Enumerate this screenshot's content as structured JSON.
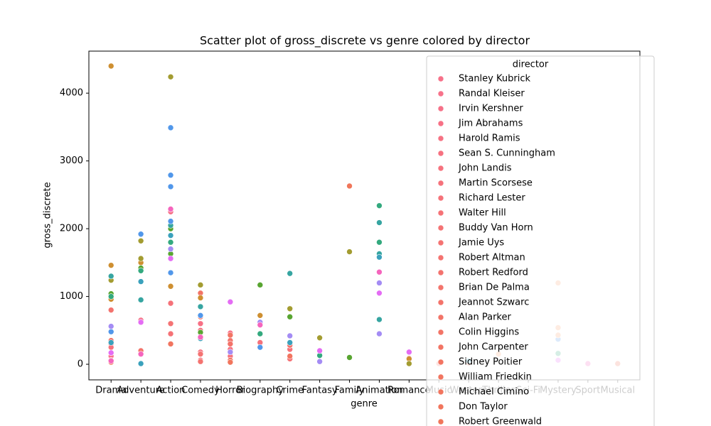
{
  "chart_data": {
    "type": "scatter",
    "title": "Scatter plot of gross_discrete vs genre colored by director",
    "x_label": "genre",
    "y_label": "gross_discrete",
    "legend_title": "director",
    "legend_position": "upper right",
    "categories": [
      "Drama",
      "Adventure",
      "Action",
      "Comedy",
      "Horror",
      "Biography",
      "Crime",
      "Fantasy",
      "Family",
      "Animation",
      "Romance",
      "Music",
      "Western",
      "Thriller",
      "Sci-Fi",
      "Mystery",
      "Sport",
      "Musical"
    ],
    "ylim": [
      -230,
      4620
    ],
    "yticks": [
      0,
      1000,
      2000,
      3000,
      4000
    ],
    "series": [
      {
        "name": "Stanley Kubrick",
        "color": "#f77189",
        "x": [
          "Drama",
          "Horror"
        ],
        "values": [
          120,
          460
        ]
      },
      {
        "name": "Randal Kleiser",
        "color": "#f7728a",
        "x": [
          "Romance",
          "Drama"
        ],
        "values": [
          90,
          300
        ]
      },
      {
        "name": "Irvin Kershner",
        "color": "#f67188",
        "x": [
          "Action",
          "Adventure"
        ],
        "values": [
          2250,
          650
        ]
      },
      {
        "name": "Jim Abrahams",
        "color": "#f77085",
        "x": [
          "Comedy"
        ],
        "values": [
          600
        ]
      },
      {
        "name": "Harold Ramis",
        "color": "#f67283",
        "x": [
          "Comedy",
          "Comedy"
        ],
        "values": [
          500,
          180
        ]
      },
      {
        "name": "Sean S. Cunningham",
        "color": "#f67180",
        "x": [
          "Horror"
        ],
        "values": [
          220
        ]
      },
      {
        "name": "John Landis",
        "color": "#f6727e",
        "x": [
          "Comedy",
          "Horror"
        ],
        "values": [
          380,
          120
        ]
      },
      {
        "name": "Martin Scorsese",
        "color": "#f5727b",
        "x": [
          "Drama",
          "Crime",
          "Biography"
        ],
        "values": [
          250,
          220,
          320
        ]
      },
      {
        "name": "Richard Lester",
        "color": "#f57279",
        "x": [
          "Action",
          "Comedy"
        ],
        "values": [
          900,
          60
        ]
      },
      {
        "name": "Walter Hill",
        "color": "#f57276",
        "x": [
          "Action",
          "Crime"
        ],
        "values": [
          450,
          80
        ]
      },
      {
        "name": "Buddy Van Horn",
        "color": "#f47374",
        "x": [
          "Action"
        ],
        "values": [
          600
        ]
      },
      {
        "name": "Jamie Uys",
        "color": "#f47372",
        "x": [
          "Comedy"
        ],
        "values": [
          150
        ]
      },
      {
        "name": "Robert Altman",
        "color": "#f47370",
        "x": [
          "Comedy",
          "Drama"
        ],
        "values": [
          40,
          60
        ]
      },
      {
        "name": "Robert Redford",
        "color": "#f3736e",
        "x": [
          "Drama"
        ],
        "values": [
          800
        ]
      },
      {
        "name": "Brian De Palma",
        "color": "#f3746c",
        "x": [
          "Crime",
          "Horror"
        ],
        "values": [
          280,
          350
        ]
      },
      {
        "name": "Jeannot Szwarc",
        "color": "#f3736a",
        "x": [
          "Horror",
          "Adventure"
        ],
        "values": [
          300,
          200
        ]
      },
      {
        "name": "Alan Parker",
        "color": "#f27468",
        "x": [
          "Drama",
          "Music"
        ],
        "values": [
          350,
          10
        ]
      },
      {
        "name": "Colin Higgins",
        "color": "#f27466",
        "x": [
          "Comedy"
        ],
        "values": [
          1050
        ]
      },
      {
        "name": "John Carpenter",
        "color": "#f27464",
        "x": [
          "Horror",
          "Horror"
        ],
        "values": [
          430,
          60
        ]
      },
      {
        "name": "Sidney Poitier",
        "color": "#f27462",
        "x": [
          "Comedy"
        ],
        "values": [
          700
        ]
      },
      {
        "name": "William Friedkin",
        "color": "#f17560",
        "x": [
          "Crime",
          "Action"
        ],
        "values": [
          120,
          300
        ]
      },
      {
        "name": "Michael Cimino",
        "color": "#f1755e",
        "x": [
          "Western",
          "Drama"
        ],
        "values": [
          20,
          30
        ]
      },
      {
        "name": "Don Taylor",
        "color": "#f1755c",
        "x": [
          "Horror"
        ],
        "values": [
          30
        ]
      },
      {
        "name": "Robert Greenwald",
        "color": "#f0765a",
        "x": [
          "Family",
          "Musical"
        ],
        "values": [
          2630,
          10
        ]
      },
      {
        "color": "#ce8f31",
        "x": [
          "Drama",
          "Drama",
          "Adventure",
          "Action",
          "Comedy",
          "Biography",
          "Romance",
          "Drama"
        ],
        "values": [
          4400,
          1460,
          1500,
          1150,
          980,
          720,
          80,
          960
        ]
      },
      {
        "color": "#a39c31",
        "x": [
          "Action",
          "Adventure",
          "Adventure",
          "Comedy",
          "Crime",
          "Fantasy",
          "Family",
          "Romance",
          "Drama"
        ],
        "values": [
          4240,
          1820,
          1560,
          1170,
          820,
          390,
          1660,
          10,
          1240
        ]
      },
      {
        "color": "#58a531",
        "x": [
          "Action",
          "Action",
          "Adventure",
          "Biography",
          "Crime",
          "Family",
          "Drama",
          "Comedy"
        ],
        "values": [
          2000,
          1630,
          1420,
          1170,
          700,
          100,
          1040,
          470
        ]
      },
      {
        "color": "#33a97e",
        "x": [
          "Animation",
          "Animation",
          "Action",
          "Drama",
          "Adventure",
          "Biography",
          "Fantasy",
          "Mystery"
        ],
        "values": [
          2340,
          1800,
          1800,
          1000,
          1380,
          450,
          130,
          160
        ]
      },
      {
        "color": "#36a5a1",
        "x": [
          "Animation",
          "Animation",
          "Crime",
          "Drama",
          "Action",
          "Adventure",
          "Animation",
          "Comedy"
        ],
        "values": [
          2090,
          1630,
          1340,
          1300,
          2050,
          950,
          660,
          850
        ]
      },
      {
        "color": "#3aa1bc",
        "x": [
          "Action",
          "Adventure",
          "Animation",
          "Drama",
          "Comedy",
          "Crime",
          "Western",
          "Adventure"
        ],
        "values": [
          1900,
          1220,
          1580,
          320,
          380,
          320,
          50,
          10
        ]
      },
      {
        "color": "#5197ea",
        "x": [
          "Action",
          "Action",
          "Action",
          "Action",
          "Adventure",
          "Action",
          "Comedy",
          "Biography",
          "Mystery",
          "Drama"
        ],
        "values": [
          3490,
          2790,
          2620,
          2110,
          1920,
          1350,
          720,
          250,
          370,
          480
        ]
      },
      {
        "color": "#a48cf4",
        "x": [
          "Action",
          "Animation",
          "Biography",
          "Horror",
          "Crime",
          "Fantasy",
          "Drama",
          "Animation"
        ],
        "values": [
          1700,
          1200,
          620,
          180,
          420,
          40,
          560,
          450
        ]
      },
      {
        "color": "#e46cf4",
        "x": [
          "Horror",
          "Action",
          "Animation",
          "Romance",
          "Drama",
          "Adventure",
          "Fantasy",
          "Mystery"
        ],
        "values": [
          920,
          1560,
          1050,
          180,
          170,
          620,
          200,
          60
        ]
      },
      {
        "color": "#f565bd",
        "x": [
          "Action",
          "Animation",
          "Biography",
          "Comedy",
          "Drama",
          "Sport",
          "Adventure"
        ],
        "values": [
          2290,
          1360,
          580,
          400,
          50,
          10,
          150
        ]
      },
      {
        "color": "#f7a070",
        "x": [
          "Mystery",
          "Mystery",
          "Mystery",
          "Thriller"
        ],
        "values": [
          1200,
          540,
          430,
          150
        ]
      }
    ]
  }
}
